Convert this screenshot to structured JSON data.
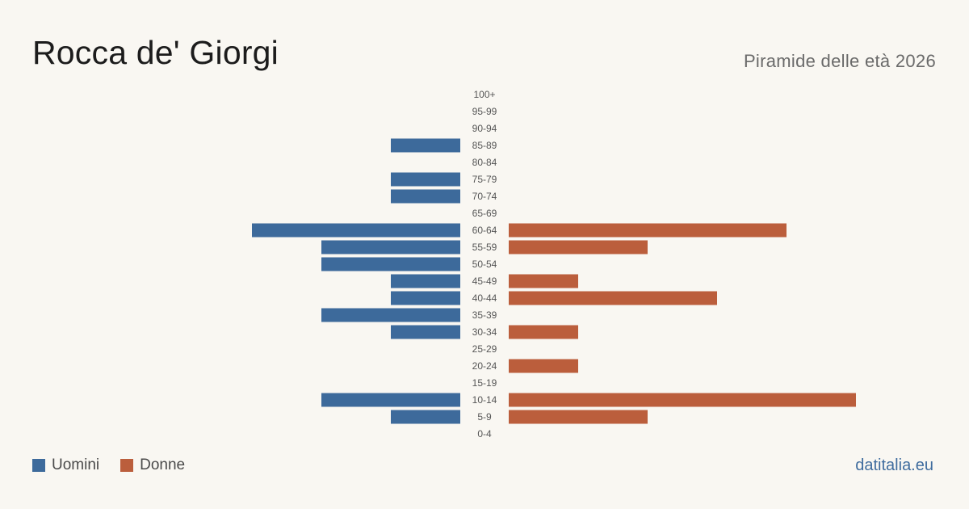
{
  "header": {
    "title": "Rocca de' Giorgi",
    "subtitle": "Piramide delle età 2026"
  },
  "legend": {
    "men_label": "Uomini",
    "women_label": "Donne"
  },
  "source": "datitalia.eu",
  "colors": {
    "men": "#3d6a9b",
    "women": "#bb5e3c",
    "background": "#f9f7f2"
  },
  "chart_data": {
    "type": "bar",
    "orientation": "horizontal-population-pyramid",
    "categories": [
      "100+",
      "95-99",
      "90-94",
      "85-89",
      "80-84",
      "75-79",
      "70-74",
      "65-69",
      "60-64",
      "55-59",
      "50-54",
      "45-49",
      "40-44",
      "35-39",
      "30-34",
      "25-29",
      "20-24",
      "15-19",
      "10-14",
      "5-9",
      "0-4"
    ],
    "series": [
      {
        "name": "Uomini",
        "values": [
          0,
          0,
          0,
          1,
          0,
          1,
          1,
          0,
          3,
          2,
          2,
          1,
          1,
          2,
          1,
          0,
          0,
          0,
          2,
          1,
          0
        ]
      },
      {
        "name": "Donne",
        "values": [
          0,
          0,
          0,
          0,
          0,
          0,
          0,
          0,
          4,
          2,
          0,
          1,
          3,
          0,
          1,
          0,
          1,
          0,
          5,
          2,
          0
        ]
      }
    ]
  }
}
